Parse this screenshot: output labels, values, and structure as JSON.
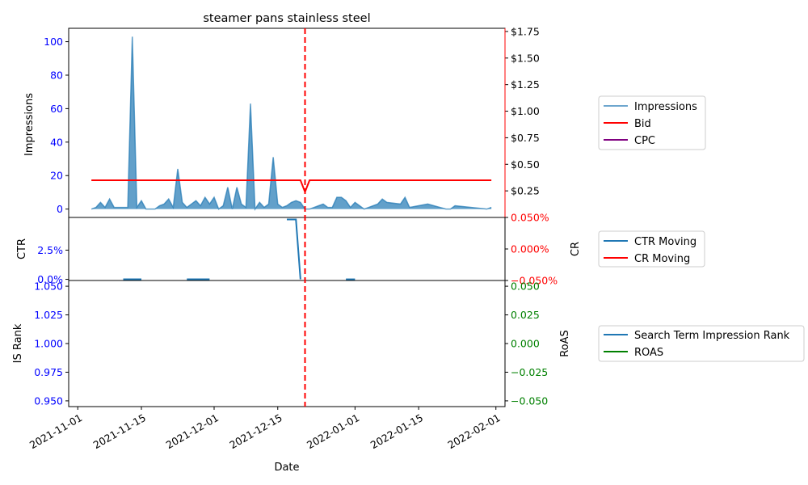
{
  "chart_data": [
    {
      "type": "area",
      "title": "steamer pans stainless steel",
      "ylabel": "Impressions",
      "ylim": [
        -5,
        108
      ],
      "yticks": [
        "0",
        "20",
        "40",
        "60",
        "80",
        "100"
      ],
      "ytick_values": [
        0,
        20,
        40,
        60,
        80,
        100
      ],
      "y2ticks": [
        "$0.25",
        "$0.50",
        "$0.75",
        "$1.00",
        "$1.25",
        "$1.50",
        "$1.75"
      ],
      "y2tick_values": [
        0.25,
        0.5,
        0.75,
        1.0,
        1.25,
        1.5,
        1.75
      ],
      "y2lim": [
        0.0,
        1.78
      ],
      "series": [
        {
          "name": "Impressions",
          "color": "#1f77b4",
          "x": [
            "2021-11-04",
            "2021-11-05",
            "2021-11-06",
            "2021-11-07",
            "2021-11-08",
            "2021-11-09",
            "2021-11-10",
            "2021-11-11",
            "2021-11-12",
            "2021-11-13",
            "2021-11-14",
            "2021-11-15",
            "2021-11-16",
            "2021-11-17",
            "2021-11-18",
            "2021-11-19",
            "2021-11-20",
            "2021-11-21",
            "2021-11-22",
            "2021-11-23",
            "2021-11-24",
            "2021-11-25",
            "2021-11-26",
            "2021-11-27",
            "2021-11-28",
            "2021-11-29",
            "2021-11-30",
            "2021-12-01",
            "2021-12-02",
            "2021-12-03",
            "2021-12-04",
            "2021-12-05",
            "2021-12-06",
            "2021-12-07",
            "2021-12-08",
            "2021-12-09",
            "2021-12-10",
            "2021-12-11",
            "2021-12-12",
            "2021-12-13",
            "2021-12-14",
            "2021-12-15",
            "2021-12-16",
            "2021-12-17",
            "2021-12-18",
            "2021-12-19",
            "2021-12-20",
            "2021-12-21",
            "2021-12-22",
            "2021-12-23",
            "2021-12-24",
            "2021-12-25",
            "2021-12-26",
            "2021-12-27",
            "2021-12-28",
            "2021-12-29",
            "2021-12-30",
            "2021-12-31",
            "2022-01-01",
            "2022-01-02",
            "2022-01-03",
            "2022-01-06",
            "2022-01-07",
            "2022-01-08",
            "2022-01-11",
            "2022-01-12",
            "2022-01-13",
            "2022-01-17",
            "2022-01-21",
            "2022-01-22",
            "2022-01-23",
            "2022-01-30",
            "2022-01-31"
          ],
          "values": [
            0,
            1,
            4,
            1,
            6,
            1,
            1,
            1,
            1,
            103,
            1,
            5,
            0,
            0,
            0,
            2,
            3,
            6,
            1,
            24,
            4,
            1,
            3,
            5,
            2,
            7,
            3,
            7,
            0,
            2,
            13,
            0,
            13,
            3,
            1,
            63,
            0,
            4,
            1,
            3,
            31,
            3,
            1,
            2,
            4,
            5,
            4,
            0,
            0,
            1,
            2,
            3,
            1,
            1,
            7,
            7,
            5,
            1,
            4,
            2,
            0,
            3,
            6,
            4,
            3,
            7,
            1,
            3,
            0,
            0,
            2,
            0,
            1
          ]
        },
        {
          "name": "Bid",
          "color": "#ff0000",
          "x": [
            "2021-11-04",
            "2021-12-20",
            "2021-12-21",
            "2021-12-22",
            "2022-01-31"
          ],
          "values": [
            0.35,
            0.35,
            0.24,
            0.35,
            0.35
          ]
        },
        {
          "name": "CPC",
          "color": "#800080",
          "x": [],
          "values": []
        }
      ]
    },
    {
      "type": "line",
      "ylabel": "CTR",
      "y2label": "CR",
      "ylim": [
        -0.001,
        0.053
      ],
      "yticks": [
        "0.0%",
        "2.5%"
      ],
      "ytick_values": [
        0.0,
        0.025
      ],
      "y2lim": [
        -0.05,
        0.05
      ],
      "y2ticks": [
        "0.050%",
        "0.000%",
        "−0.050%"
      ],
      "y2tick_values": [
        0.05,
        0.0,
        -0.05
      ],
      "series": [
        {
          "name": "CTR Moving",
          "color": "#1f77b4",
          "segments": [
            {
              "x": [
                "2021-11-11",
                "2021-11-15"
              ],
              "values": [
                0,
                0
              ]
            },
            {
              "x": [
                "2021-11-25",
                "2021-11-30"
              ],
              "values": [
                0,
                0
              ]
            },
            {
              "x": [
                "2021-12-17",
                "2021-12-19",
                "2021-12-20"
              ],
              "values": [
                0.0513,
                0.0513,
                0
              ]
            },
            {
              "x": [
                "2021-12-30",
                "2022-01-01"
              ],
              "values": [
                0,
                0
              ]
            }
          ]
        },
        {
          "name": "CR Moving",
          "color": "#ff0000",
          "segments": []
        }
      ]
    },
    {
      "type": "line",
      "ylabel": "IS Rank",
      "y2label": "RoAS",
      "ylim": [
        0.945,
        1.055
      ],
      "yticks": [
        "0.950",
        "0.975",
        "1.000",
        "1.025",
        "1.050"
      ],
      "ytick_values": [
        0.95,
        0.975,
        1.0,
        1.025,
        1.05
      ],
      "y2lim": [
        -0.055,
        0.055
      ],
      "y2ticks": [
        "−0.050",
        "−0.025",
        "0.000",
        "0.025",
        "0.050"
      ],
      "y2tick_values": [
        -0.05,
        -0.025,
        0.0,
        0.025,
        0.05
      ],
      "series": [
        {
          "name": "Search Term Impression Rank",
          "color": "#1f77b4"
        },
        {
          "name": "ROAS",
          "color": "#008000"
        }
      ]
    }
  ],
  "shared_x": {
    "label": "Date",
    "range": [
      "2021-10-30",
      "2022-02-03"
    ],
    "ticks": [
      "2021-11-01",
      "2021-11-15",
      "2021-12-01",
      "2021-12-15",
      "2022-01-01",
      "2022-01-15",
      "2022-02-01"
    ],
    "ticklabels": [
      "2021-11-01",
      "2021-11-15",
      "2021-12-01",
      "2021-12-15",
      "2022-01-01",
      "2022-01-15",
      "2022-02-01"
    ],
    "event_line": {
      "x": "2021-12-21",
      "color": "#ff0000",
      "style": "dashed"
    }
  },
  "colors": {
    "left_axis_ticks": "#0000ff",
    "cr_axis_ticks": "#ff0000",
    "roas_axis_ticks": "#008000"
  }
}
